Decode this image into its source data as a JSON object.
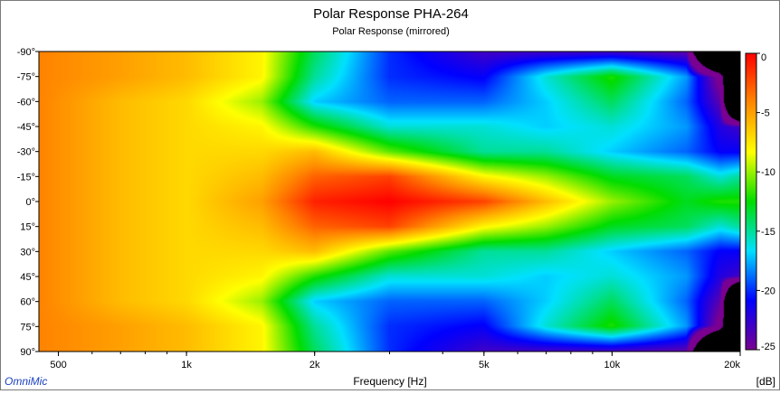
{
  "chart_data": {
    "type": "heatmap",
    "title": "Polar Response PHA-264",
    "subtitle": "Polar Response (mirrored)",
    "xlabel": "Frequency [Hz]",
    "ylabel": "",
    "x_scale": "log",
    "xlim": [
      450,
      20000
    ],
    "ylim": [
      -90,
      90
    ],
    "x_ticks": [
      {
        "value": 500,
        "label": "500"
      },
      {
        "value": 1000,
        "label": "1k"
      },
      {
        "value": 2000,
        "label": "2k"
      },
      {
        "value": 5000,
        "label": "5k"
      },
      {
        "value": 10000,
        "label": "10k"
      },
      {
        "value": 20000,
        "label": "20k"
      }
    ],
    "y_ticks": [
      {
        "value": -90,
        "label": "-90°"
      },
      {
        "value": -75,
        "label": "-75°"
      },
      {
        "value": -60,
        "label": "-60°"
      },
      {
        "value": -45,
        "label": "-45°"
      },
      {
        "value": -30,
        "label": "-30°"
      },
      {
        "value": -15,
        "label": "-15°"
      },
      {
        "value": 0,
        "label": "0°"
      },
      {
        "value": 15,
        "label": "15°"
      },
      {
        "value": 30,
        "label": "30°"
      },
      {
        "value": 45,
        "label": "45°"
      },
      {
        "value": 60,
        "label": "60°"
      },
      {
        "value": 75,
        "label": "75°"
      },
      {
        "value": 90,
        "label": "90°"
      }
    ],
    "colorbar": {
      "label": "[dB]",
      "range": [
        -25,
        0
      ],
      "ticks": [
        {
          "value": 0,
          "label": "0"
        },
        {
          "value": -5,
          "label": "-5"
        },
        {
          "value": -10,
          "label": "-10"
        },
        {
          "value": -15,
          "label": "-15"
        },
        {
          "value": -20,
          "label": "-20"
        },
        {
          "value": -25,
          "label": "-25"
        }
      ],
      "colors": [
        "#7a0091",
        "#0000ff",
        "#00e0ff",
        "#00dd00",
        "#ffff00",
        "#ff8800",
        "#ff0000"
      ]
    },
    "level_profiles": {
      "angles": [
        0,
        15,
        30,
        45,
        60,
        75,
        90
      ],
      "frequencies": [
        450,
        700,
        1000,
        1500,
        2000,
        3000,
        5000,
        7000,
        10000,
        15000,
        18000,
        20000
      ],
      "levels_db": [
        [
          -4,
          -6,
          -7,
          -5,
          -1,
          0,
          -2,
          -6,
          -10,
          -13,
          -12,
          -12
        ],
        [
          -4,
          -6,
          -7,
          -6,
          -3,
          -2,
          -8,
          -10,
          -13,
          -14,
          -16,
          -15
        ],
        [
          -4,
          -6,
          -7,
          -7,
          -6,
          -11,
          -15,
          -15,
          -17,
          -19,
          -21,
          -21
        ],
        [
          -4,
          -6,
          -7,
          -8,
          -12,
          -16,
          -16,
          -17,
          -16,
          -18,
          -22,
          -23
        ],
        [
          -4,
          -6,
          -7,
          -10,
          -17,
          -19,
          -19,
          -17,
          -14,
          -19,
          -24,
          -60
        ],
        [
          -4,
          -5,
          -6,
          -8,
          -15,
          -20,
          -21,
          -16,
          -12,
          -18,
          -26,
          -60
        ],
        [
          -4,
          -5,
          -6,
          -8,
          -14,
          -20,
          -23,
          -23,
          -23,
          -24,
          -60,
          -60
        ]
      ]
    }
  },
  "footer": {
    "brand": "OmniMic",
    "unit": "[dB]"
  }
}
